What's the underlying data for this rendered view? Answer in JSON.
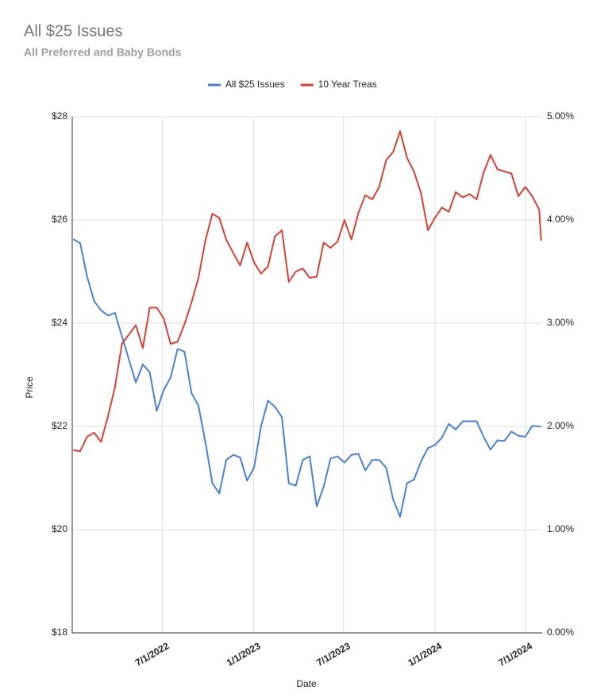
{
  "chart_data": {
    "type": "line",
    "title": "All $25 Issues",
    "subtitle": "All Preferred and Baby Bonds",
    "x_label": "Date",
    "y_label": "Price",
    "x": [
      "1/3/2022",
      "1/17/2022",
      "1/31/2022",
      "2/14/2022",
      "2/28/2022",
      "3/14/2022",
      "3/28/2022",
      "4/11/2022",
      "4/25/2022",
      "5/9/2022",
      "5/23/2022",
      "6/6/2022",
      "6/20/2022",
      "7/4/2022",
      "7/18/2022",
      "8/1/2022",
      "8/15/2022",
      "8/29/2022",
      "9/12/2022",
      "9/26/2022",
      "10/10/2022",
      "10/24/2022",
      "11/7/2022",
      "11/21/2022",
      "12/5/2022",
      "12/19/2022",
      "1/2/2023",
      "1/16/2023",
      "1/30/2023",
      "2/13/2023",
      "2/27/2023",
      "3/13/2023",
      "3/27/2023",
      "4/10/2023",
      "4/24/2023",
      "5/8/2023",
      "5/22/2023",
      "6/5/2023",
      "6/19/2023",
      "7/3/2023",
      "7/17/2023",
      "7/31/2023",
      "8/14/2023",
      "8/28/2023",
      "9/11/2023",
      "9/25/2023",
      "10/9/2023",
      "10/23/2023",
      "11/6/2023",
      "11/20/2023",
      "12/4/2023",
      "12/18/2023",
      "1/1/2024",
      "1/15/2024",
      "1/29/2024",
      "2/12/2024",
      "2/26/2024",
      "3/11/2024",
      "3/25/2024",
      "4/8/2024",
      "4/22/2024",
      "5/6/2024",
      "5/20/2024",
      "6/3/2024",
      "6/17/2024",
      "7/1/2024",
      "7/15/2024",
      "7/29/2024",
      "8/2/2024"
    ],
    "series": [
      {
        "name": "All $25 Issues",
        "color": "#4a7fdb",
        "axis": "y",
        "values": [
          25.63,
          25.55,
          24.9,
          24.43,
          24.25,
          24.15,
          24.2,
          23.75,
          23.3,
          22.85,
          23.2,
          23.05,
          22.3,
          22.7,
          22.95,
          23.5,
          23.45,
          22.65,
          22.4,
          21.7,
          20.9,
          20.7,
          21.35,
          21.45,
          21.4,
          20.95,
          21.2,
          22.0,
          22.5,
          22.38,
          22.18,
          20.9,
          20.85,
          21.35,
          21.42,
          20.45,
          20.83,
          21.38,
          21.42,
          21.3,
          21.45,
          21.47,
          21.15,
          21.35,
          21.35,
          21.2,
          20.58,
          20.25,
          20.9,
          20.97,
          21.32,
          21.58,
          21.64,
          21.78,
          22.05,
          21.94,
          22.1,
          22.1,
          22.1,
          21.8,
          21.55,
          21.73,
          21.72,
          21.9,
          21.82,
          21.8,
          22.01,
          22.0,
          22.0
        ]
      },
      {
        "name": "10 Year Treas",
        "color": "#d8413a",
        "axis": "y2",
        "values": [
          1.77,
          1.76,
          1.9,
          1.94,
          1.85,
          2.1,
          2.38,
          2.8,
          2.89,
          2.98,
          2.76,
          3.15,
          3.15,
          3.05,
          2.8,
          2.82,
          2.99,
          3.2,
          3.44,
          3.8,
          4.06,
          4.02,
          3.81,
          3.68,
          3.56,
          3.78,
          3.59,
          3.48,
          3.55,
          3.84,
          3.9,
          3.4,
          3.5,
          3.53,
          3.44,
          3.45,
          3.78,
          3.73,
          3.79,
          4.0,
          3.81,
          4.07,
          4.24,
          4.2,
          4.32,
          4.58,
          4.66,
          4.86,
          4.6,
          4.47,
          4.26,
          3.9,
          4.02,
          4.12,
          4.08,
          4.27,
          4.22,
          4.25,
          4.2,
          4.46,
          4.63,
          4.49,
          4.47,
          4.45,
          4.23,
          4.32,
          4.23,
          4.1,
          3.8
        ]
      }
    ],
    "xlim": [
      "1/1/2022",
      "8/4/2024"
    ],
    "xticks": [
      "7/1/2022",
      "1/1/2023",
      "7/1/2023",
      "1/1/2024",
      "7/1/2024"
    ],
    "ylim": [
      18,
      28
    ],
    "yticks": [
      {
        "value": 18,
        "label": "$18"
      },
      {
        "value": 20,
        "label": "$20"
      },
      {
        "value": 22,
        "label": "$22"
      },
      {
        "value": 24,
        "label": "$24"
      },
      {
        "value": 26,
        "label": "$26"
      },
      {
        "value": 28,
        "label": "$28"
      }
    ],
    "y2lim": [
      0,
      5
    ],
    "y2ticks": [
      {
        "value": 0,
        "label": "0.00%"
      },
      {
        "value": 1,
        "label": "1.00%"
      },
      {
        "value": 2,
        "label": "2.00%"
      },
      {
        "value": 3,
        "label": "3.00%"
      },
      {
        "value": 4,
        "label": "4.00%"
      },
      {
        "value": 5,
        "label": "5.00%"
      }
    ],
    "grid": true,
    "legend": "top"
  }
}
